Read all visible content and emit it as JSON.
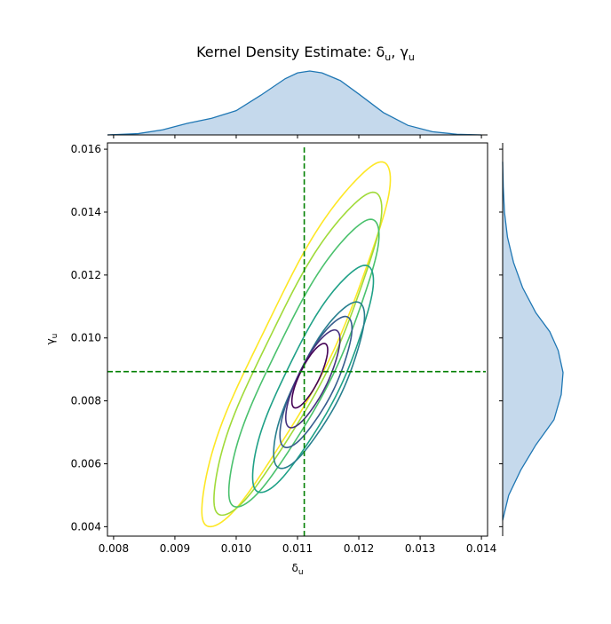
{
  "chart_data": {
    "type": "kde_joint",
    "title": "Kernel Density Estimate: δ",
    "title_parts": {
      "s1": "u",
      "sep": ", γ",
      "s2": "u"
    },
    "xlabel_main": "δ",
    "xlabel_sub": "u",
    "ylabel_main": "γ",
    "ylabel_sub": "u",
    "xlim": [
      0.0079,
      0.0141
    ],
    "ylim": [
      0.0037,
      0.0162
    ],
    "xticks": [
      "0.008",
      "0.009",
      "0.010",
      "0.011",
      "0.012",
      "0.013",
      "0.014"
    ],
    "yticks": [
      "0.004",
      "0.006",
      "0.008",
      "0.010",
      "0.012",
      "0.014",
      "0.016"
    ],
    "reference_lines": {
      "x": 0.01111,
      "y": 0.00893,
      "color": "#008000",
      "style": "dashed"
    },
    "contour_colors": [
      "#440154",
      "#46327e",
      "#365c8d",
      "#277f8e",
      "#1fa187",
      "#4ac16d",
      "#a0da39",
      "#fde725"
    ],
    "contours": [
      {
        "level": 1,
        "cx": 0.0112,
        "cy": 0.0088,
        "u": 0.00058,
        "v": 0.00016,
        "angle_deg": -64
      },
      {
        "level": 2,
        "cx": 0.01125,
        "cy": 0.0087,
        "u": 0.00088,
        "v": 0.00024,
        "angle_deg": -64
      },
      {
        "level": 3,
        "cx": 0.0113,
        "cy": 0.0086,
        "u": 0.00118,
        "v": 0.00031,
        "angle_deg": -64
      },
      {
        "level": 4,
        "cx": 0.01135,
        "cy": 0.0085,
        "u": 0.0015,
        "v": 0.00038,
        "angle_deg": -64
      },
      {
        "level": 5,
        "cx": 0.01125,
        "cy": 0.0087,
        "u": 0.00205,
        "v": 0.00045,
        "angle_deg": -64
      },
      {
        "level": 6,
        "cx": 0.0111,
        "cy": 0.0092,
        "u": 0.0026,
        "v": 0.0005,
        "angle_deg": -64
      },
      {
        "level": 7,
        "cx": 0.011,
        "cy": 0.0095,
        "u": 0.00292,
        "v": 0.00054,
        "angle_deg": -64
      },
      {
        "level": 8,
        "cx": 0.01097,
        "cy": 0.0098,
        "u": 0.0033,
        "v": 0.00058,
        "angle_deg": -64
      }
    ],
    "marginal_x": {
      "color": "#1f77b4",
      "fill": "#c5d9ec",
      "x": [
        0.0079,
        0.0084,
        0.0088,
        0.0092,
        0.0096,
        0.01,
        0.0104,
        0.0108,
        0.011,
        0.0112,
        0.0114,
        0.0117,
        0.012,
        0.0124,
        0.0128,
        0.0132,
        0.0136,
        0.014
      ],
      "density": [
        0.0,
        0.02,
        0.08,
        0.18,
        0.26,
        0.38,
        0.62,
        0.88,
        0.97,
        1.0,
        0.97,
        0.85,
        0.64,
        0.35,
        0.15,
        0.05,
        0.01,
        0.0
      ]
    },
    "marginal_y": {
      "color": "#1f77b4",
      "fill": "#c5d9ec",
      "y": [
        0.0042,
        0.005,
        0.0058,
        0.0066,
        0.0074,
        0.0082,
        0.0089,
        0.0096,
        0.0102,
        0.0108,
        0.0116,
        0.0124,
        0.0132,
        0.014,
        0.0148,
        0.0156
      ],
      "density": [
        0.0,
        0.1,
        0.3,
        0.55,
        0.85,
        0.97,
        1.0,
        0.92,
        0.78,
        0.55,
        0.33,
        0.18,
        0.08,
        0.03,
        0.01,
        0.0
      ]
    }
  }
}
